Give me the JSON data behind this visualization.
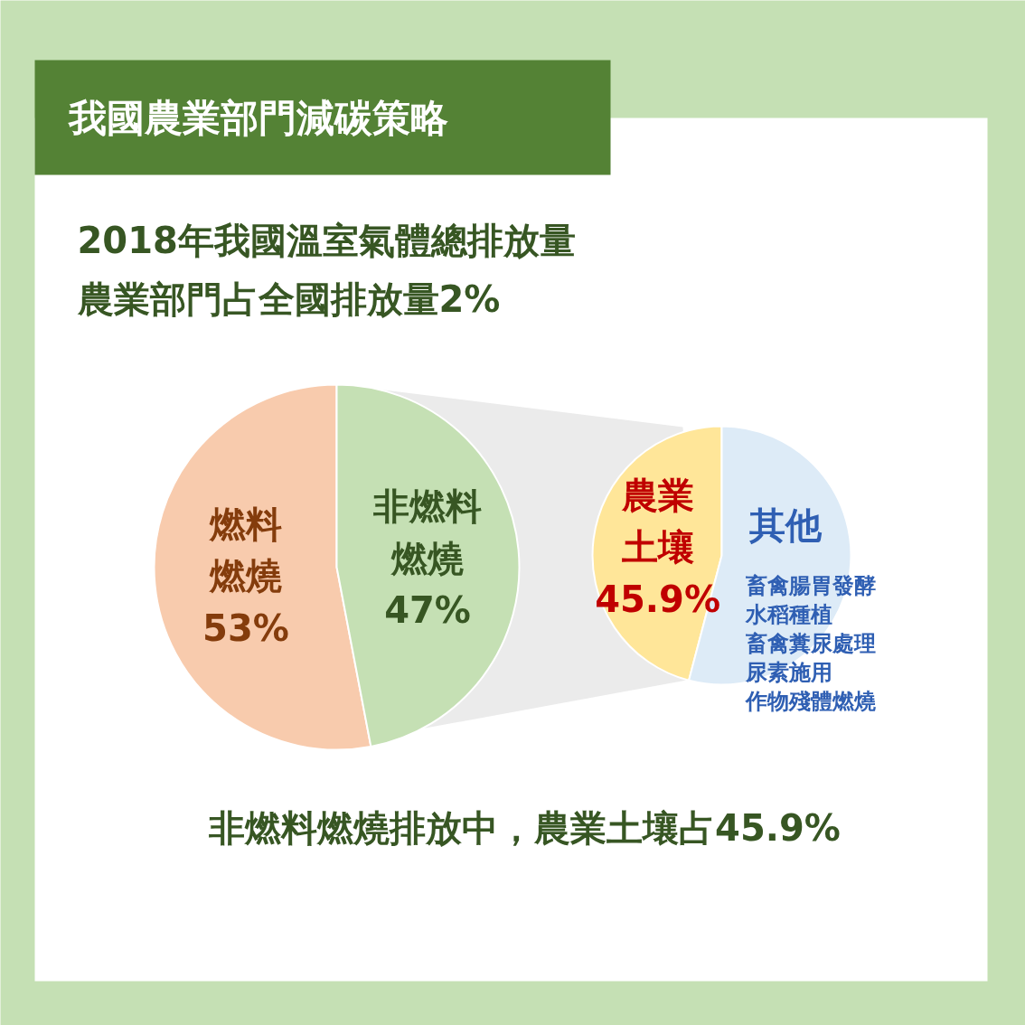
{
  "chart_data": [
    {
      "type": "pie",
      "title": "我國農業部門減碳策略",
      "subtitle": "2018年我國溫室氣體總排放量",
      "annotations": [
        "農業部門占全國排放量2%"
      ],
      "categories": [
        "燃料燃燒",
        "非燃料燃燒"
      ],
      "values": [
        53,
        47
      ],
      "value_labels": [
        "53%",
        "47%"
      ],
      "colors": [
        "#f8cbad",
        "#c5e0b4"
      ]
    },
    {
      "type": "pie",
      "categories": [
        "農業土壤",
        "其他"
      ],
      "values": [
        45.9,
        54.1
      ],
      "value_labels": [
        "45.9%",
        null
      ],
      "colors": [
        "#ffe699",
        "#ddebf7"
      ],
      "annotations": [
        "畜禽腸胃發酵",
        "水稻種植",
        "畜禽糞尿處理",
        "尿素施用",
        "作物殘體燃燒",
        "非燃料燃燒排放中，農業土壤占45.9%"
      ]
    }
  ]
}
